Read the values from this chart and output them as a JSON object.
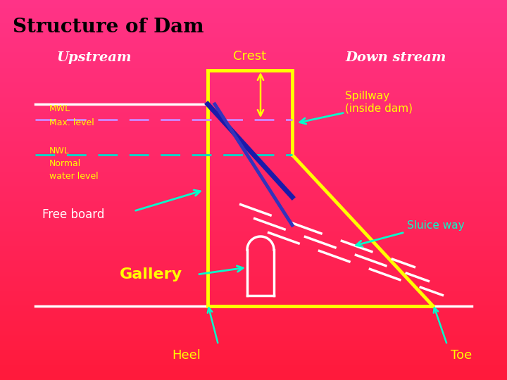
{
  "title": "Structure of Dam",
  "upstream_label": "Upstream",
  "downstream_label": "Down stream",
  "crest_label": "Crest",
  "mwl_label1": "MWL",
  "mwl_label2": "Max. level",
  "nwl_label1": "NWL",
  "nwl_label2": "Normal",
  "nwl_label3": "water level",
  "freeboard_label": "Free board",
  "gallery_label": "Gallery",
  "heel_label": "Heel",
  "toe_label": "Toe",
  "spillway_label": "Spillway\n(inside dam)",
  "sluiceway_label": "Sluice way",
  "dam_yellow": "#ffff00",
  "text_yellow": "#ffff00",
  "text_cyan": "#00ffcc",
  "text_white": "#ffffff",
  "text_black": "#000000",
  "bg_top": "#ff3388",
  "bg_bottom": "#ff1133",
  "line_purple": "#cc88ff",
  "line_cyan_dash": "#00ddcc",
  "blue1": "#1a1aaa",
  "blue2": "#3333bb"
}
